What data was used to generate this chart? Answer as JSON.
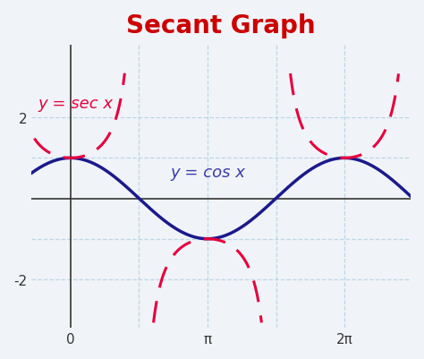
{
  "title": "Secant Graph",
  "title_color": "#cc0000",
  "title_fontsize": 20,
  "title_fontweight": "bold",
  "cos_color": "#1a1a8c",
  "cos_linewidth": 2.5,
  "sec_color": "#e8003d",
  "sec_linewidth": 2.2,
  "sec_linestyle": "--",
  "sec_dashes": [
    8,
    5
  ],
  "label_cos": "y = cos x",
  "label_sec": "y = sec x",
  "label_cos_color": "#3a3aaa",
  "label_sec_color": "#e8003d",
  "label_fontsize": 13,
  "x_ticks": [
    0,
    3.14159265,
    6.2831853
  ],
  "x_tick_labels": [
    "0",
    "π",
    "2π"
  ],
  "y_ticks": [
    -2,
    2
  ],
  "y_tick_labels": [
    "-2",
    "2"
  ],
  "xlim": [
    -0.9,
    7.8
  ],
  "ylim": [
    -3.2,
    3.8
  ],
  "grid_color": "#aaccdd",
  "grid_linestyle": "--",
  "grid_alpha": 0.7,
  "background_color": "#f0f4f8",
  "axis_color": "#333333",
  "clip_val": 3.1
}
